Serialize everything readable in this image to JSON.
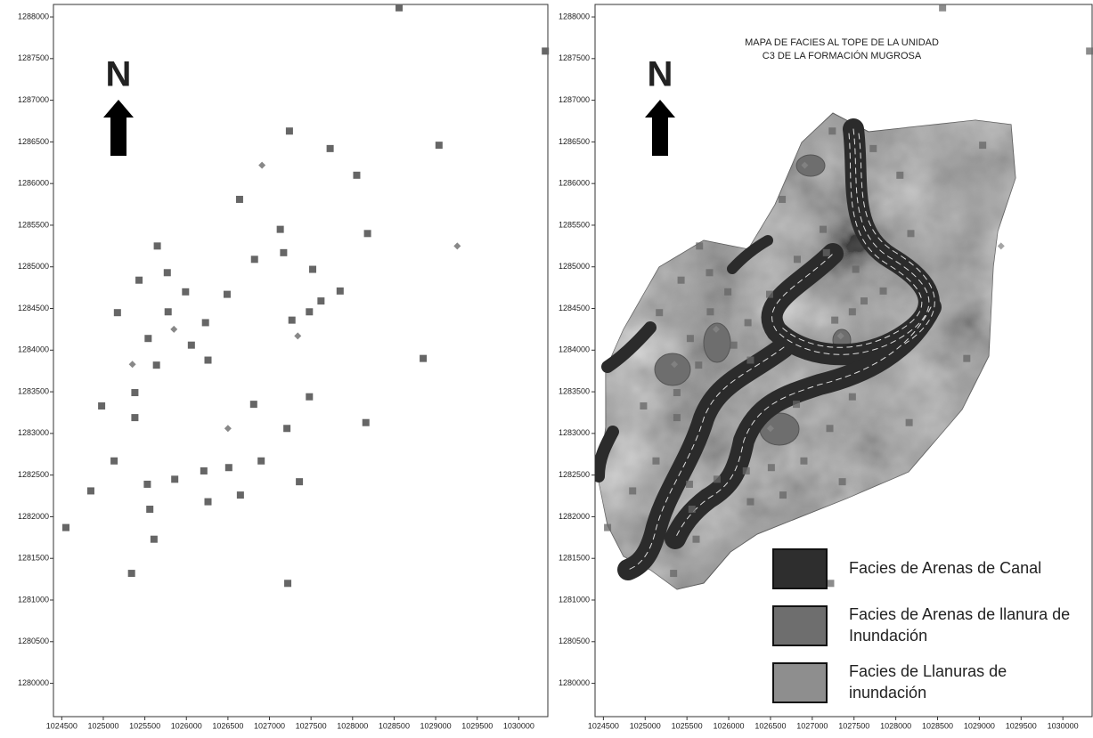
{
  "north_label": "N",
  "axes": {
    "xlim": [
      1024400,
      1030350
    ],
    "ylim": [
      1279600,
      1288150
    ],
    "xticks": [
      1024500,
      1025000,
      1025500,
      1026000,
      1026500,
      1027000,
      1027500,
      1028000,
      1028500,
      1029000,
      1029500,
      1030000
    ],
    "yticks": [
      1280000,
      1280500,
      1281000,
      1281500,
      1282000,
      1282500,
      1283000,
      1283500,
      1284000,
      1284500,
      1285000,
      1285500,
      1286000,
      1286500,
      1287000,
      1287500,
      1288000
    ]
  },
  "wells": {
    "squares": [
      [
        1027240,
        1286630
      ],
      [
        1027730,
        1286420
      ],
      [
        1029040,
        1286460
      ],
      [
        1028050,
        1286100
      ],
      [
        1026640,
        1285810
      ],
      [
        1027130,
        1285450
      ],
      [
        1025650,
        1285250
      ],
      [
        1028180,
        1285400
      ],
      [
        1026820,
        1285090
      ],
      [
        1027170,
        1285170
      ],
      [
        1025430,
        1284840
      ],
      [
        1027520,
        1284970
      ],
      [
        1025770,
        1284930
      ],
      [
        1025990,
        1284700
      ],
      [
        1026490,
        1284670
      ],
      [
        1025170,
        1284450
      ],
      [
        1027850,
        1284710
      ],
      [
        1027620,
        1284590
      ],
      [
        1027480,
        1284460
      ],
      [
        1027270,
        1284360
      ],
      [
        1025780,
        1284460
      ],
      [
        1026230,
        1284330
      ],
      [
        1025540,
        1284140
      ],
      [
        1026060,
        1284060
      ],
      [
        1026260,
        1283880
      ],
      [
        1025640,
        1283820
      ],
      [
        1028850,
        1283900
      ],
      [
        1025380,
        1283490
      ],
      [
        1027480,
        1283440
      ],
      [
        1024980,
        1283330
      ],
      [
        1025380,
        1283190
      ],
      [
        1026810,
        1283350
      ],
      [
        1028160,
        1283130
      ],
      [
        1027210,
        1283060
      ],
      [
        1025130,
        1282670
      ],
      [
        1026900,
        1282670
      ],
      [
        1026210,
        1282550
      ],
      [
        1026510,
        1282590
      ],
      [
        1025860,
        1282450
      ],
      [
        1025530,
        1282390
      ],
      [
        1027360,
        1282420
      ],
      [
        1024850,
        1282310
      ],
      [
        1026260,
        1282180
      ],
      [
        1026650,
        1282260
      ],
      [
        1025560,
        1282090
      ],
      [
        1024550,
        1281870
      ],
      [
        1025610,
        1281730
      ],
      [
        1025340,
        1281320
      ],
      [
        1027220,
        1281200
      ],
      [
        1028560,
        1288110
      ],
      [
        1030320,
        1287590
      ]
    ],
    "diamonds": [
      [
        1026910,
        1286220
      ],
      [
        1025850,
        1284250
      ],
      [
        1025350,
        1283830
      ],
      [
        1026500,
        1283060
      ],
      [
        1027340,
        1284170
      ],
      [
        1029260,
        1285250
      ]
    ]
  },
  "facies_map": {
    "title": [
      "MAPA DE FACIES AL TOPE DE LA UNIDAD",
      "C3 DE LA FORMACIÓN MUGROSA"
    ],
    "legend": [
      {
        "label": [
          "Facies de Arenas de Canal"
        ],
        "color": "#2e2e2e"
      },
      {
        "label": [
          "Facies de Arenas de llanura de",
          "Inundación"
        ],
        "color": "#6e6e6e"
      },
      {
        "label": [
          "Facies de Llanuras de",
          "inundación"
        ],
        "color": "#8e8e8e"
      }
    ]
  }
}
